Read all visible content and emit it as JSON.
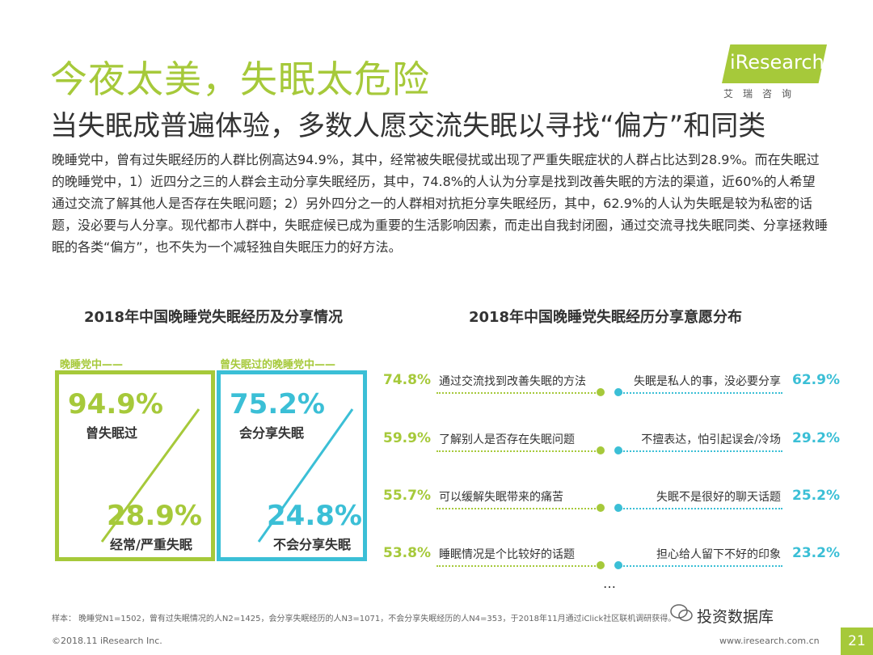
{
  "header": {
    "title": "今夜太美，失眠太危险",
    "subtitle": "当失眠成普遍体验，多数人愿交流失眠以寻找“偏方”和同类",
    "logo_text": "iResearch",
    "logo_cn": "艾瑞咨询"
  },
  "body_text": "晚睡党中，曾有过失眠经历的人群比例高达94.9%，其中，经常被失眠侵扰或出现了严重失眠症状的人群占比达到28.9%。而在失眠过的晚睡党中，1）近四分之三的人群会主动分享失眠经历，其中，74.8%的人认为分享是找到改善失眠的方法的渠道，近60%的人希望通过交流了解其他人是否存在失眠问题；2）另外四分之一的人群相对抗拒分享失眠经历，其中，62.9%的人认为失眠是较为私密的话题，没必要与人分享。现代都市人群中，失眠症候已成为重要的生活影响因素，而走出自我封闭圈，通过交流寻找失眠同类、分享拯救睡眠的各类“偏方”，也不失为一个减轻独自失眠压力的好方法。",
  "colors": {
    "green": "#a6c93a",
    "blue": "#3bbfd6",
    "text": "#333333"
  },
  "chart_data": [
    {
      "type": "table",
      "title": "2018年中国晚睡党失眠经历及分享情况",
      "panels": [
        {
          "tag": "晚睡党中——",
          "top_value": "94.9%",
          "top_label": "曾失眠过",
          "bottom_value": "28.9%",
          "bottom_label": "经常/严重失眠",
          "color": "#a6c93a"
        },
        {
          "tag": "曾失眠过的晚睡党中——",
          "top_value": "75.2%",
          "top_label": "会分享失眠",
          "bottom_value": "24.8%",
          "bottom_label": "不会分享失眠",
          "color": "#3bbfd6"
        }
      ]
    },
    {
      "type": "table",
      "title": "2018年中国晚睡党失眠经历分享意愿分布",
      "left_series": [
        {
          "value": "74.8%",
          "label": "通过交流找到改善失眠的方法"
        },
        {
          "value": "59.9%",
          "label": "了解别人是否存在失眠问题"
        },
        {
          "value": "55.7%",
          "label": "可以缓解失眠带来的痛苦"
        },
        {
          "value": "53.8%",
          "label": "睡眠情况是个比较好的话题"
        }
      ],
      "right_series": [
        {
          "value": "62.9%",
          "label": "失眠是私人的事，没必要分享"
        },
        {
          "value": "29.2%",
          "label": "不擅表达，怕引起误会/冷场"
        },
        {
          "value": "25.2%",
          "label": "失眠不是很好的聊天话题"
        },
        {
          "value": "23.2%",
          "label": "担心给人留下不好的印象"
        }
      ],
      "ellipsis": "…"
    }
  ],
  "footer": {
    "footnote": "样本： 晚睡党N1=1502，曾有过失眠情况的人N2=1425，会分享失眠经历的人N3=1071，不会分享失眠经历的人N4=353，于2018年11月通过iClick社区联机调研获得。",
    "copyright": "©2018.11 iResearch Inc.",
    "website": "www.iresearch.com.cn",
    "page_number": "21",
    "watermark": "投资数据库"
  }
}
